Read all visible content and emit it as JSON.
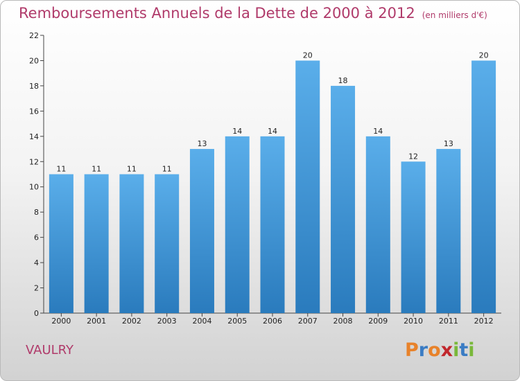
{
  "title": "Remboursements Annuels de la Dette de 2000 à 2012",
  "unit_note": "(en milliers d'€)",
  "commune": "VAULRY",
  "logo": {
    "text": "Proxiti",
    "letters": [
      {
        "char": "P",
        "color": "#e8822a"
      },
      {
        "char": "r",
        "color": "#3a7cc4"
      },
      {
        "char": "o",
        "color": "#e8822a"
      },
      {
        "char": "x",
        "color": "#c1272d"
      },
      {
        "char": "i",
        "color": "#79b83a"
      },
      {
        "char": "t",
        "color": "#3a7cc4"
      },
      {
        "char": "i",
        "color": "#79b83a"
      }
    ]
  },
  "chart_data": {
    "type": "bar",
    "title": "Remboursements Annuels de la Dette de 2000 à 2012",
    "categories": [
      "2000",
      "2001",
      "2002",
      "2003",
      "2004",
      "2005",
      "2006",
      "2007",
      "2008",
      "2009",
      "2010",
      "2011",
      "2012"
    ],
    "values": [
      11,
      11,
      11,
      11,
      13,
      14,
      14,
      20,
      18,
      14,
      12,
      13,
      20
    ],
    "data_labels": [
      "11",
      "11",
      "11",
      "11",
      "13",
      "14",
      "14",
      "20",
      "18",
      "14",
      "12",
      "13",
      "20"
    ],
    "yticks": [
      0,
      2,
      4,
      6,
      8,
      10,
      12,
      14,
      16,
      18,
      20,
      22
    ],
    "ylim": [
      0,
      22
    ],
    "xlabel": "",
    "ylabel": "",
    "grid": false,
    "bar_color_top": "#5aaeea",
    "bar_color_bottom": "#2a7bbd"
  }
}
